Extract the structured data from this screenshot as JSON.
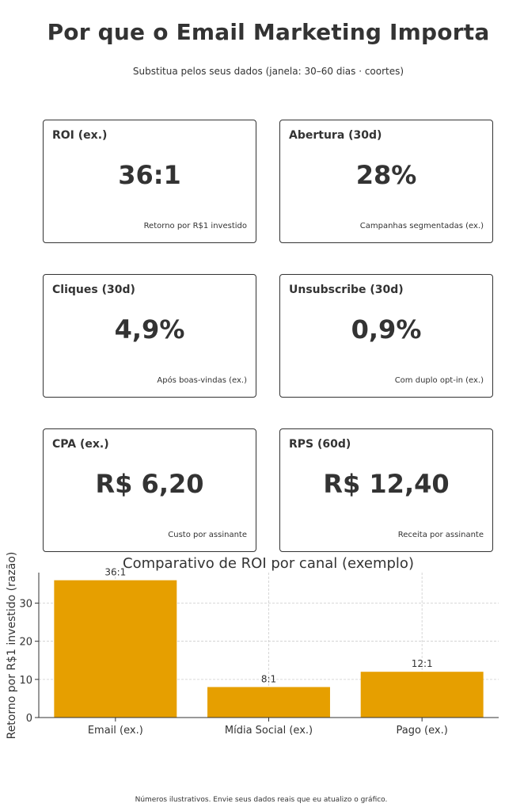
{
  "header": {
    "title": "Por que o Email Marketing Importa",
    "subtitle": "Substitua pelos seus dados (janela: 30–60 dias · coortes)"
  },
  "cards": [
    {
      "label": "ROI (ex.)",
      "value": "36:1",
      "note": "Retorno por R$1 investido"
    },
    {
      "label": "Abertura (30d)",
      "value": "28%",
      "note": "Campanhas segmentadas (ex.)"
    },
    {
      "label": "Cliques (30d)",
      "value": "4,9%",
      "note": "Após boas-vindas (ex.)"
    },
    {
      "label": "Unsubscribe (30d)",
      "value": "0,9%",
      "note": "Com duplo opt-in (ex.)"
    },
    {
      "label": "CPA (ex.)",
      "value": "R$ 6,20",
      "note": "Custo por assinante"
    },
    {
      "label": "RPS (60d)",
      "value": "R$ 12,40",
      "note": "Receita por assinante"
    }
  ],
  "chart_data": {
    "type": "bar",
    "title": "Comparativo de ROI por canal (exemplo)",
    "xlabel": "",
    "ylabel": "Retorno por R$1 investido (razão)",
    "categories": [
      "Email (ex.)",
      "Mídia Social (ex.)",
      "Pago (ex.)"
    ],
    "values": [
      36,
      8,
      12
    ],
    "data_labels": [
      "36:1",
      "8:1",
      "12:1"
    ],
    "ylim": [
      0,
      38
    ],
    "yticks": [
      0,
      10,
      20,
      30
    ],
    "grid": true,
    "bar_color": "#E69F00"
  },
  "footer": "Números ilustrativos. Envie seus dados reais que eu atualizo o gráfico."
}
